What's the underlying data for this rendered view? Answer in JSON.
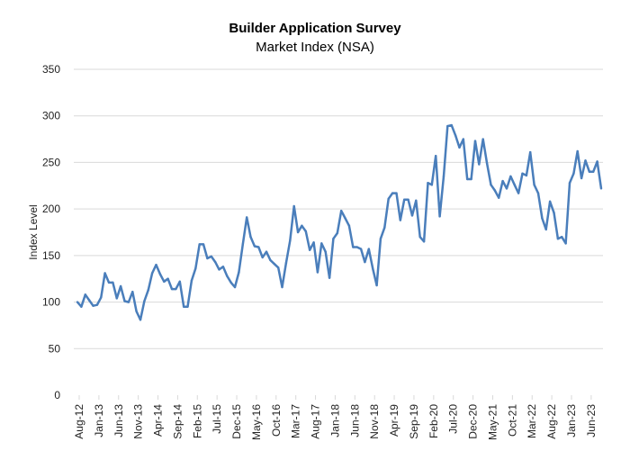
{
  "chart_data": {
    "type": "line",
    "title": "Builder Application Survey",
    "subtitle": "Market Index (NSA)",
    "xlabel": "",
    "ylabel": "Index Level",
    "ylim": [
      0,
      350
    ],
    "yticks": [
      0,
      50,
      100,
      150,
      200,
      250,
      300,
      350
    ],
    "grid": true,
    "legend": "none",
    "line_color": "#4A7EBB",
    "grid_color": "#D9D9D9",
    "start_month": "Aug-12",
    "x_tick_labels": [
      "Aug-12",
      "Jan-13",
      "Jun-13",
      "Nov-13",
      "Apr-14",
      "Sep-14",
      "Feb-15",
      "Jul-15",
      "Dec-15",
      "May-16",
      "Oct-16",
      "Mar-17",
      "Aug-17",
      "Jan-18",
      "Jun-18",
      "Nov-18",
      "Apr-19",
      "Sep-19",
      "Feb-20",
      "Jul-20",
      "Dec-20",
      "May-21",
      "Oct-21",
      "Mar-22",
      "Aug-22",
      "Jan-23",
      "Jun-23"
    ],
    "x_tick_every_months": 5,
    "series": [
      {
        "name": "Market Index (NSA)",
        "values": [
          100,
          95,
          108,
          102,
          96,
          97,
          105,
          131,
          121,
          121,
          104,
          117,
          101,
          100,
          111,
          90,
          81,
          101,
          113,
          131,
          140,
          130,
          122,
          125,
          114,
          114,
          122,
          95,
          95,
          123,
          136,
          162,
          162,
          147,
          149,
          143,
          135,
          138,
          128,
          121,
          116,
          132,
          162,
          191,
          170,
          160,
          159,
          148,
          154,
          145,
          141,
          137,
          116,
          142,
          166,
          203,
          175,
          182,
          176,
          156,
          164,
          132,
          163,
          154,
          126,
          168,
          174,
          198,
          190,
          182,
          159,
          159,
          157,
          143,
          157,
          136,
          118,
          168,
          180,
          211,
          217,
          217,
          188,
          210,
          210,
          193,
          209,
          170,
          165,
          228,
          226,
          257,
          192,
          235,
          289,
          290,
          279,
          266,
          275,
          232,
          232,
          273,
          248,
          275,
          249,
          226,
          220,
          212,
          230,
          222,
          235,
          226,
          217,
          238,
          236,
          261,
          226,
          217,
          190,
          178,
          208,
          196,
          168,
          170,
          163,
          228,
          238,
          262,
          233,
          252,
          240,
          240,
          251,
          222
        ]
      }
    ]
  }
}
